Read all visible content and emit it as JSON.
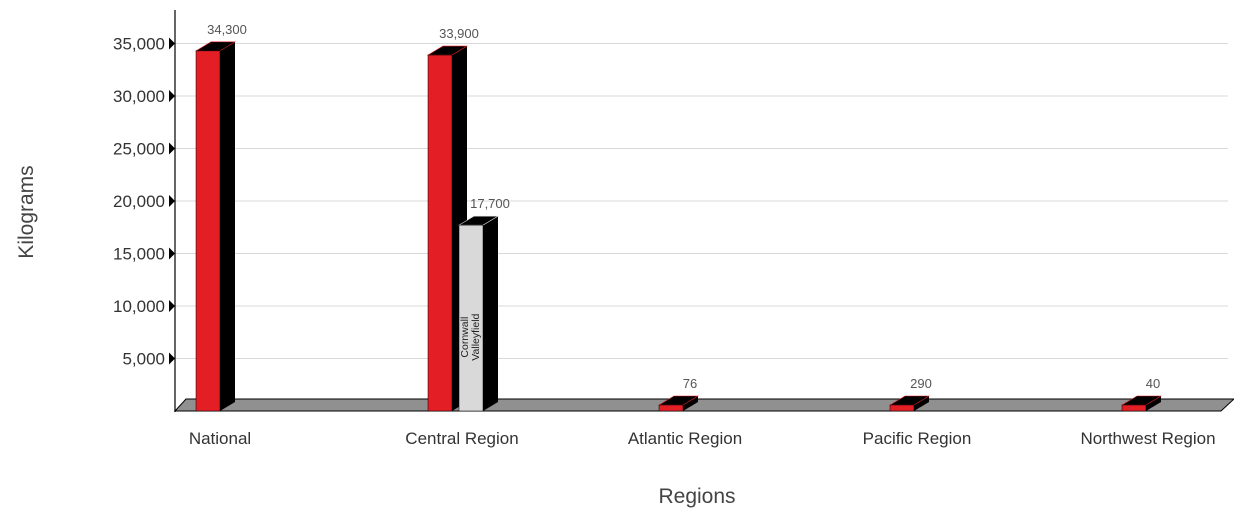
{
  "chart_data": {
    "type": "bar",
    "xlabel": "Regions",
    "ylabel": "Kilograms",
    "ylim": [
      0,
      35000
    ],
    "yticks": [
      5000,
      10000,
      15000,
      20000,
      25000,
      30000,
      35000
    ],
    "ytick_labels": [
      "5,000",
      "10,000",
      "15,000",
      "20,000",
      "25,000",
      "30,000",
      "35,000"
    ],
    "grid": true,
    "categories": [
      "National",
      "Central Region",
      "Atlantic Region",
      "Pacific Region",
      "Northwest Region"
    ],
    "bars": [
      {
        "category": "National",
        "value": 34300,
        "label": "34,300",
        "color": "#e31e24"
      },
      {
        "category": "Central Region",
        "value": 33900,
        "label": "33,900",
        "color": "#e31e24"
      },
      {
        "category": "Central Region",
        "value": 17700,
        "label": "17,700",
        "color": "#d9d9d9",
        "inner_label": [
          "Cornwall",
          "Valleyfield"
        ]
      },
      {
        "category": "Atlantic Region",
        "value": 76,
        "label": "76",
        "color": "#e31e24"
      },
      {
        "category": "Pacific Region",
        "value": 290,
        "label": "290",
        "color": "#e31e24"
      },
      {
        "category": "Northwest Region",
        "value": 40,
        "label": "40",
        "color": "#e31e24"
      }
    ]
  }
}
